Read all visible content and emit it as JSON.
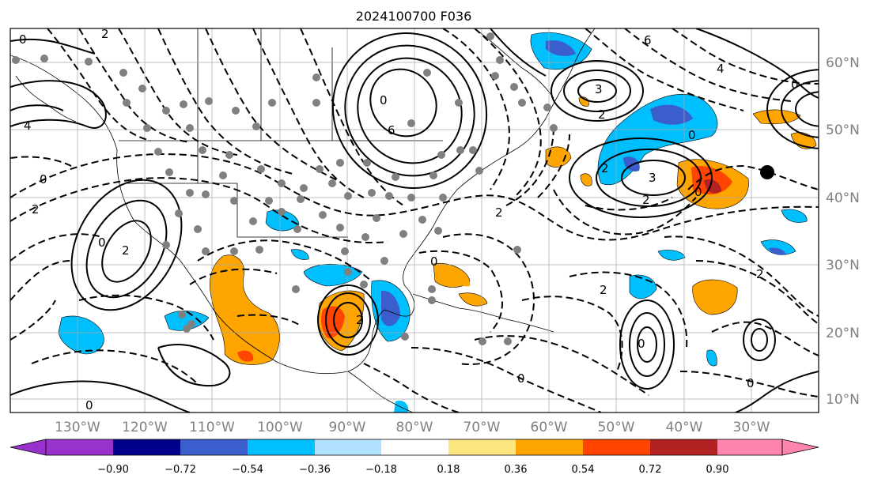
{
  "title": "2024100700 F036",
  "map": {
    "lon_labels": [
      "130°W",
      "120°W",
      "110°W",
      "100°W",
      "90°W",
      "80°W",
      "70°W",
      "60°W",
      "50°W",
      "40°W",
      "30°W"
    ],
    "lat_labels": [
      "60°N",
      "50°N",
      "40°N",
      "30°N",
      "20°N",
      "10°N"
    ],
    "contour_labels": [
      "0",
      "2",
      "4",
      "0",
      "2",
      "6",
      "0",
      "3",
      "2",
      "0",
      "6",
      "4",
      "0",
      "3",
      "2",
      "2",
      "0",
      "2",
      "0",
      "2",
      "2",
      "0",
      "0",
      "2",
      "0",
      "2",
      "0",
      "0"
    ]
  },
  "colorbar": {
    "ticks": [
      "−0.90",
      "−0.72",
      "−0.54",
      "−0.36",
      "−0.18",
      "0.18",
      "0.36",
      "0.54",
      "0.72",
      "0.90"
    ],
    "colors": {
      "under": "#9932cc",
      "bins": [
        "#00008b",
        "#3a5fcd",
        "#00bfff",
        "#b0e2ff",
        "#ffffff",
        "#fce680",
        "#ffa500",
        "#ff4500",
        "#b22222"
      ],
      "over": "#ff85b0"
    }
  }
}
